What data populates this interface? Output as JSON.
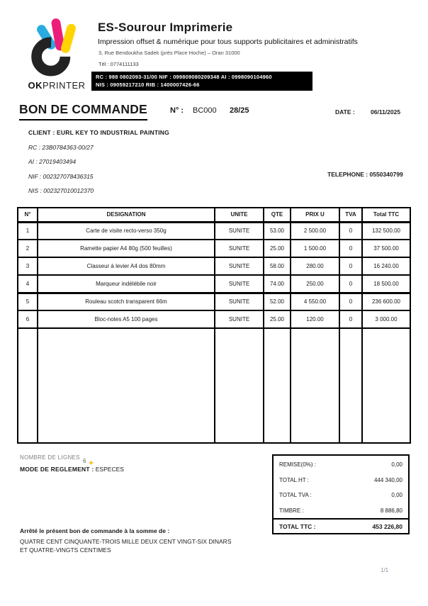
{
  "company": {
    "name": "ES-Sourour Imprimerie",
    "tagline": "Impression offset & numérique pour tous supports publicitaires et administratifs",
    "address": "3, Rue Bendoukha Sadek (près Place Hoche) –  Oran 31000",
    "phone": "Tél : 0774111133",
    "legal_line1": "RC : 988 0802093-31/00   NIF : 099809080209348   AI : 0998090104960",
    "legal_line2": "NIS : 09059217210    RIB : 1400007426-66",
    "logo": {
      "brand_bold": "OK",
      "brand_rest": "PRINTER",
      "tagline_dots": "· ·· ·  · ···",
      "colors": {
        "cyan": "#29abe2",
        "magenta": "#ec1e79",
        "yellow": "#ffd400",
        "black": "#232323"
      }
    }
  },
  "order": {
    "title": "BON DE COMMANDE",
    "number_label": "N° :",
    "number_prefix": "BC000",
    "number_value": "28/25",
    "date_label": "DATE :",
    "date_value": "06/11/2025"
  },
  "client": {
    "client_line": "CLIENT : EURL KEY TO INDUSTRIAL PAINTING",
    "rc": "RC : 23B0784363-00/27",
    "ai": "AI : 27019403494",
    "nif": "NIF : 002327078436315",
    "nis": "NIS : 002327010012370",
    "phone": "TELEPHONE : 0550340799"
  },
  "table": {
    "headers": [
      "N°",
      "DESIGNATION",
      "UNITE",
      "QTE",
      "PRIX U",
      "TVA",
      "Total TTC"
    ],
    "rows": [
      [
        "1",
        "Carte de visite recto-verso 350g",
        "SUNITE",
        "53.00",
        "2 500.00",
        "0",
        "132 500.00"
      ],
      [
        "2",
        "Ramette papier A4 80g (500 feuilles)",
        "SUNITE",
        "25.00",
        "1 500.00",
        "0",
        "37 500.00"
      ],
      [
        "3",
        "Classeur à levier A4 dos 80mm",
        "SUNITE",
        "58.00",
        "280.00",
        "0",
        "16 240.00"
      ],
      [
        "4",
        "Marqueur indélébile noir",
        "SUNITE",
        "74.00",
        "250.00",
        "0",
        "18 500.00"
      ],
      [
        "5",
        "Rouleau scotch transparent 66m",
        "SUNITE",
        "52.00",
        "4 550.00",
        "0",
        "236 600.00"
      ],
      [
        "6",
        "Bloc-notes A5 100 pages",
        "SUNITE",
        "25.00",
        "120.00",
        "0",
        "3 000.00"
      ]
    ]
  },
  "summary": {
    "lines_label": "NOMBRE DE LIGNES",
    "lines_count": "6",
    "payment_label": "MODE DE REGLEMENT :",
    "payment_value": "ESPECES",
    "sparkle_icon": "✦",
    "totals": [
      {
        "label": "REMISE(0%) :",
        "value": "0,00"
      },
      {
        "label": "TOTAL HT :",
        "value": "444 340,00"
      },
      {
        "label": "TOTAL TVA :",
        "value": "0,00"
      },
      {
        "label": "TIMBRE :",
        "value": "8 886,80"
      }
    ],
    "grand_total": {
      "label": "TOTAL TTC :",
      "value": "453 226,80"
    }
  },
  "footer": {
    "amount_intro": "Arrêté le présent bon de commande  à la somme de :",
    "amount_words_line1": "QUATRE CENT CINQUANTE-TROIS MILLE DEUX CENT VINGT-SIX DINARS",
    "amount_words_line2": "ET QUATRE-VINGTS CENTIMES",
    "page": "1/1"
  }
}
